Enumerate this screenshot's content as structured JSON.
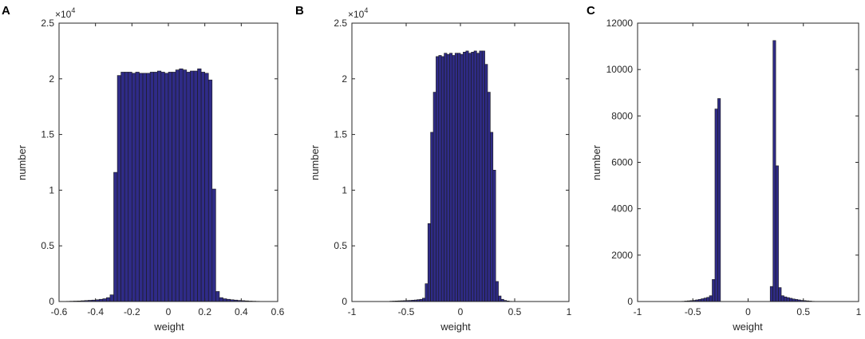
{
  "colors": {
    "bar_fill": "#2f2b87",
    "bar_edge": "#1b1b1b",
    "axis": "#262626"
  },
  "chart_data": [
    {
      "type": "bar",
      "panel_label": "A",
      "xlabel": "weight",
      "ylabel": "number",
      "exponent_label": "×10",
      "exponent_power": "4",
      "xlim": [
        -0.6,
        0.6
      ],
      "ylim": [
        0,
        25000
      ],
      "xticks": [
        -0.6,
        -0.4,
        -0.2,
        0,
        0.2,
        0.4,
        0.6
      ],
      "xtick_labels": [
        "-0.6",
        "-0.4",
        "-0.2",
        "0",
        "0.2",
        "0.4",
        "0.6"
      ],
      "yticks": [
        0,
        5000,
        10000,
        15000,
        20000,
        25000
      ],
      "ytick_labels": [
        "0",
        "0.5",
        "1",
        "1.5",
        "2",
        "2.5"
      ],
      "bin_width": 0.02,
      "bin_starts": [
        -0.56,
        -0.54,
        -0.52,
        -0.5,
        -0.48,
        -0.46,
        -0.44,
        -0.42,
        -0.4,
        -0.38,
        -0.36,
        -0.34,
        -0.32,
        -0.3,
        -0.28,
        -0.26,
        -0.24,
        -0.22,
        -0.2,
        -0.18,
        -0.16,
        -0.14,
        -0.12,
        -0.1,
        -0.08,
        -0.06,
        -0.04,
        -0.02,
        0,
        0.02,
        0.04,
        0.06,
        0.08,
        0.1,
        0.12,
        0.14,
        0.16,
        0.18,
        0.2,
        0.22,
        0.24,
        0.26,
        0.28,
        0.3,
        0.32,
        0.34,
        0.36,
        0.38,
        0.4,
        0.42,
        0.44,
        0.46,
        0.48,
        0.5
      ],
      "values": [
        20,
        30,
        40,
        50,
        70,
        90,
        110,
        130,
        160,
        200,
        250,
        350,
        600,
        11600,
        20300,
        20600,
        20600,
        20600,
        20500,
        20600,
        20500,
        20500,
        20500,
        20600,
        20600,
        20700,
        20600,
        20500,
        20600,
        20600,
        20800,
        20900,
        20800,
        20600,
        20700,
        20700,
        20900,
        20600,
        20500,
        19900,
        10100,
        900,
        350,
        250,
        200,
        160,
        130,
        100,
        80,
        60,
        40,
        30,
        20,
        10
      ]
    },
    {
      "type": "bar",
      "panel_label": "B",
      "xlabel": "weight",
      "ylabel": "number",
      "exponent_label": "×10",
      "exponent_power": "4",
      "xlim": [
        -1,
        1
      ],
      "ylim": [
        0,
        25000
      ],
      "xticks": [
        -1,
        -0.5,
        0,
        0.5,
        1
      ],
      "xtick_labels": [
        "-1",
        "-0.5",
        "0",
        "0.5",
        "1"
      ],
      "yticks": [
        0,
        5000,
        10000,
        15000,
        20000,
        25000
      ],
      "ytick_labels": [
        "0",
        "0.5",
        "1",
        "1.5",
        "2",
        "2.5"
      ],
      "bin_width": 0.025,
      "bin_starts": [
        -0.65,
        -0.625,
        -0.6,
        -0.575,
        -0.55,
        -0.525,
        -0.5,
        -0.475,
        -0.45,
        -0.425,
        -0.4,
        -0.375,
        -0.35,
        -0.325,
        -0.3,
        -0.275,
        -0.25,
        -0.225,
        -0.2,
        -0.175,
        -0.15,
        -0.125,
        -0.1,
        -0.075,
        -0.05,
        -0.025,
        0,
        0.025,
        0.05,
        0.075,
        0.1,
        0.125,
        0.15,
        0.175,
        0.2,
        0.225,
        0.25,
        0.275,
        0.3,
        0.325,
        0.35,
        0.375,
        0.4,
        0.425,
        0.45
      ],
      "values": [
        30,
        40,
        50,
        60,
        70,
        80,
        90,
        100,
        120,
        140,
        170,
        200,
        300,
        1600,
        7000,
        15200,
        18800,
        22000,
        22100,
        22000,
        22300,
        22200,
        22300,
        22100,
        22300,
        22300,
        22200,
        22400,
        22500,
        22300,
        22400,
        22500,
        22300,
        22500,
        22500,
        21300,
        18800,
        15200,
        11800,
        1800,
        500,
        200,
        100,
        50,
        20
      ]
    },
    {
      "type": "bar",
      "panel_label": "C",
      "xlabel": "weight",
      "ylabel": "number",
      "xlim": [
        -1,
        1
      ],
      "ylim": [
        0,
        12000
      ],
      "xticks": [
        -1,
        -0.5,
        0,
        0.5,
        1
      ],
      "xtick_labels": [
        "-1",
        "-0.5",
        "0",
        "0.5",
        "1"
      ],
      "yticks": [
        0,
        2000,
        4000,
        6000,
        8000,
        10000,
        12000
      ],
      "ytick_labels": [
        "0",
        "2000",
        "4000",
        "6000",
        "8000",
        "10000",
        "12000"
      ],
      "bin_width": 0.025,
      "bin_starts": [
        -0.6,
        -0.575,
        -0.55,
        -0.525,
        -0.5,
        -0.475,
        -0.45,
        -0.425,
        -0.4,
        -0.375,
        -0.35,
        -0.325,
        -0.3,
        -0.275,
        -0.25,
        0.2,
        0.225,
        0.25,
        0.275,
        0.3,
        0.325,
        0.35,
        0.375,
        0.4,
        0.425,
        0.45,
        0.475,
        0.5,
        0.525,
        0.55,
        0.575,
        0.6
      ],
      "values": [
        10,
        20,
        30,
        40,
        50,
        70,
        90,
        120,
        150,
        180,
        250,
        950,
        8300,
        8750,
        0,
        650,
        11250,
        5850,
        600,
        250,
        200,
        170,
        140,
        110,
        90,
        70,
        50,
        40,
        30,
        20,
        10,
        5
      ]
    }
  ]
}
